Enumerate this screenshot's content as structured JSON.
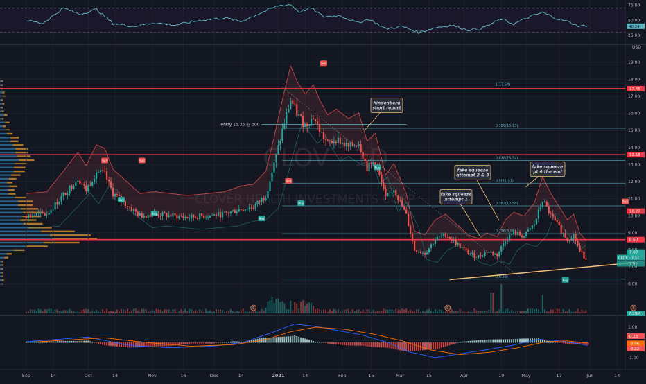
{
  "colors": {
    "bg": "#131722",
    "up": "#26a69a",
    "down": "#ef5350",
    "rsi_line": "#5db3c2",
    "resistance": "#f23645",
    "fib": "#5db3c2",
    "trend": "#f5c27a",
    "callout_border": "#f5c27a",
    "macd_line": "#2962ff",
    "signal_line": "#ff6d00"
  },
  "rsi": {
    "ticks": [
      "75.00",
      "50.00",
      "25.00"
    ],
    "value_label": "40.24",
    "ylim": [
      15,
      80
    ],
    "bands": [
      70,
      30
    ]
  },
  "price_axis": {
    "currency": "USD",
    "ticks": [
      "19.00",
      "18.00",
      "17.00",
      "16.00",
      "15.00",
      "14.00",
      "13.00",
      "12.00",
      "11.00",
      "10.00",
      "9.00",
      "8.00",
      "7.00",
      "6.00"
    ]
  },
  "price_tags": [
    {
      "text": "17.45",
      "price": 17.45,
      "color": "#f23645"
    },
    {
      "text": "13.58",
      "price": 13.58,
      "color": "#f23645"
    },
    {
      "text": "10.27",
      "price": 10.27,
      "color": "#f23645"
    },
    {
      "text": "8.60",
      "price": 8.6,
      "color": "#f23645"
    },
    {
      "text": "7.87",
      "price": 7.87,
      "color": "#26a69a"
    }
  ],
  "bottom_tags": {
    "clov_price": "CLOV · 7.51",
    "second_price": "7.51",
    "volume": "7.29M"
  },
  "resistance_levels": [
    17.45,
    13.58,
    8.6
  ],
  "fib_levels": [
    {
      "label": "1(17.54)",
      "price": 17.54
    },
    {
      "label": "0.786(15.13)",
      "price": 15.13
    },
    {
      "label": "0.618(13.24)",
      "price": 13.24
    },
    {
      "label": "0.5(11.91)",
      "price": 11.91
    },
    {
      "label": "0.382(10.58)",
      "price": 10.58
    },
    {
      "label": "0.236(8.95)",
      "price": 8.95
    },
    {
      "label": "0(6.28)",
      "price": 6.28
    }
  ],
  "annotations": {
    "entry": "entry 15.35 @ 300",
    "hindenberg": [
      "hindenberg",
      "short report"
    ],
    "squeeze1": [
      "fake squeeze",
      "attempt 1"
    ],
    "squeeze23": [
      "fake squeeze",
      "attempt 2 & 3"
    ],
    "squeeze4": [
      "fake squeeze",
      "pt 4 the end"
    ]
  },
  "watermark": {
    "ticker": "CLOV · 1D",
    "name": "CLOVER HEALTH INVESTMENTS CORP"
  },
  "signals": [
    {
      "text": "Sell",
      "kind": "sell",
      "day": 38,
      "price": 13.2
    },
    {
      "text": "Buy",
      "kind": "buy",
      "day": 46,
      "price": 10.9
    },
    {
      "text": "Sell",
      "kind": "sell",
      "day": 56,
      "price": 13.2
    },
    {
      "text": "Buy",
      "kind": "buy",
      "day": 62,
      "price": 10.1
    },
    {
      "text": "Buy",
      "kind": "buy",
      "day": 114,
      "price": 9.8
    },
    {
      "text": "Sell",
      "kind": "sell",
      "day": 127,
      "price": 12.0
    },
    {
      "text": "Buy",
      "kind": "buy",
      "day": 133,
      "price": 10.7
    },
    {
      "text": "Sell",
      "kind": "sell",
      "day": 144,
      "price": 18.9
    },
    {
      "text": "Sell",
      "kind": "sell",
      "day": 180,
      "price": 16.4
    },
    {
      "text": "Buy",
      "kind": "buy",
      "day": 170,
      "price": 12.8
    },
    {
      "text": "Buy",
      "kind": "buy",
      "day": 261,
      "price": 6.2
    },
    {
      "text": "Sell",
      "kind": "sell",
      "day": 290,
      "price": 10.8
    }
  ],
  "events": [
    {
      "text": "E",
      "day": 110
    },
    {
      "text": "E",
      "day": 204
    },
    {
      "text": "E",
      "day": 294
    }
  ],
  "macd_axis": {
    "ticks": [
      "1.00",
      "0.00",
      "-1.00"
    ],
    "values": [
      "0.23",
      "-0.06",
      "-0.22"
    ]
  },
  "x_axis": [
    {
      "label": "Sep",
      "day": 0
    },
    {
      "label": "14",
      "day": 13
    },
    {
      "label": "Oct",
      "day": 30
    },
    {
      "label": "14",
      "day": 43
    },
    {
      "label": "Nov",
      "day": 61
    },
    {
      "label": "16",
      "day": 76
    },
    {
      "label": "Dec",
      "day": 91
    },
    {
      "label": "14",
      "day": 104
    },
    {
      "label": "2021",
      "day": 122
    },
    {
      "label": "14",
      "day": 135
    },
    {
      "label": "Feb",
      "day": 153
    },
    {
      "label": "15",
      "day": 167
    },
    {
      "label": "Mar",
      "day": 181
    },
    {
      "label": "15",
      "day": 195
    },
    {
      "label": "Apr",
      "day": 212
    },
    {
      "label": "19",
      "day": 230
    },
    {
      "label": "May",
      "day": 242
    },
    {
      "label": "17",
      "day": 258
    },
    {
      "label": "Jun",
      "day": 273
    },
    {
      "label": "14",
      "day": 286
    }
  ],
  "chart_data": {
    "type": "candlestick",
    "title": "CLOV · 1D",
    "ylabel": "USD",
    "ylim": [
      5.5,
      19.6
    ],
    "x_range_days": [
      -6,
      292
    ],
    "price_keypoints": [
      [
        0,
        10.0
      ],
      [
        10,
        10.1
      ],
      [
        18,
        11.2
      ],
      [
        25,
        12.2
      ],
      [
        29,
        11.5
      ],
      [
        34,
        12.6
      ],
      [
        38,
        12.4
      ],
      [
        42,
        11.3
      ],
      [
        47,
        10.8
      ],
      [
        55,
        10.0
      ],
      [
        62,
        10.1
      ],
      [
        70,
        10.0
      ],
      [
        78,
        9.9
      ],
      [
        88,
        10.0
      ],
      [
        96,
        10.1
      ],
      [
        104,
        10.4
      ],
      [
        110,
        10.5
      ],
      [
        116,
        11.2
      ],
      [
        120,
        13.0
      ],
      [
        124,
        15.0
      ],
      [
        128,
        16.8
      ],
      [
        131,
        16.0
      ],
      [
        135,
        15.3
      ],
      [
        139,
        15.8
      ],
      [
        142,
        15.0
      ],
      [
        146,
        14.2
      ],
      [
        150,
        14.5
      ],
      [
        156,
        14.0
      ],
      [
        161,
        14.3
      ],
      [
        165,
        12.8
      ],
      [
        169,
        13.2
      ],
      [
        174,
        11.0
      ],
      [
        178,
        11.6
      ],
      [
        184,
        10.0
      ],
      [
        188,
        8.0
      ],
      [
        193,
        7.8
      ],
      [
        198,
        8.6
      ],
      [
        203,
        8.9
      ],
      [
        208,
        8.4
      ],
      [
        214,
        7.8
      ],
      [
        219,
        7.6
      ],
      [
        223,
        7.9
      ],
      [
        228,
        7.7
      ],
      [
        232,
        8.6
      ],
      [
        236,
        9.0
      ],
      [
        241,
        8.8
      ],
      [
        246,
        9.5
      ],
      [
        250,
        10.9
      ],
      [
        254,
        10.0
      ],
      [
        258,
        9.3
      ],
      [
        262,
        8.6
      ],
      [
        265,
        8.9
      ],
      [
        268,
        7.9
      ],
      [
        271,
        7.5
      ]
    ],
    "rsi_keypoints": [
      [
        0,
        50
      ],
      [
        8,
        45
      ],
      [
        18,
        70
      ],
      [
        26,
        60
      ],
      [
        34,
        68
      ],
      [
        42,
        45
      ],
      [
        52,
        40
      ],
      [
        62,
        46
      ],
      [
        72,
        42
      ],
      [
        84,
        50
      ],
      [
        96,
        54
      ],
      [
        104,
        48
      ],
      [
        112,
        60
      ],
      [
        122,
        74
      ],
      [
        128,
        76
      ],
      [
        132,
        64
      ],
      [
        138,
        70
      ],
      [
        144,
        56
      ],
      [
        152,
        58
      ],
      [
        160,
        46
      ],
      [
        166,
        52
      ],
      [
        174,
        36
      ],
      [
        182,
        40
      ],
      [
        190,
        30
      ],
      [
        198,
        38
      ],
      [
        206,
        42
      ],
      [
        214,
        34
      ],
      [
        220,
        36
      ],
      [
        230,
        52
      ],
      [
        236,
        44
      ],
      [
        244,
        56
      ],
      [
        250,
        63
      ],
      [
        256,
        54
      ],
      [
        262,
        48
      ],
      [
        268,
        40
      ],
      [
        272,
        42
      ]
    ],
    "macd_keypoints": [
      [
        0,
        0.05
      ],
      [
        20,
        0.25
      ],
      [
        30,
        0.35
      ],
      [
        50,
        -0.2
      ],
      [
        70,
        -0.35
      ],
      [
        90,
        -0.25
      ],
      [
        105,
        0.0
      ],
      [
        118,
        0.6
      ],
      [
        130,
        1.2
      ],
      [
        140,
        1.05
      ],
      [
        150,
        0.8
      ],
      [
        162,
        0.5
      ],
      [
        175,
        0.0
      ],
      [
        185,
        -0.6
      ],
      [
        198,
        -1.0
      ],
      [
        210,
        -0.75
      ],
      [
        222,
        -0.5
      ],
      [
        235,
        -0.2
      ],
      [
        248,
        0.2
      ],
      [
        258,
        0.1
      ],
      [
        268,
        -0.1
      ],
      [
        272,
        -0.2
      ]
    ],
    "signal_keypoints": [
      [
        0,
        0.0
      ],
      [
        25,
        0.2
      ],
      [
        38,
        0.3
      ],
      [
        58,
        0.0
      ],
      [
        80,
        -0.25
      ],
      [
        100,
        -0.15
      ],
      [
        115,
        0.15
      ],
      [
        128,
        0.7
      ],
      [
        140,
        1.0
      ],
      [
        155,
        0.85
      ],
      [
        168,
        0.55
      ],
      [
        182,
        0.1
      ],
      [
        196,
        -0.5
      ],
      [
        210,
        -0.8
      ],
      [
        224,
        -0.65
      ],
      [
        238,
        -0.35
      ],
      [
        252,
        0.05
      ],
      [
        262,
        0.1
      ],
      [
        272,
        -0.05
      ]
    ],
    "trendline": [
      [
        205,
        6.25
      ],
      [
        294,
        7.25
      ]
    ]
  }
}
